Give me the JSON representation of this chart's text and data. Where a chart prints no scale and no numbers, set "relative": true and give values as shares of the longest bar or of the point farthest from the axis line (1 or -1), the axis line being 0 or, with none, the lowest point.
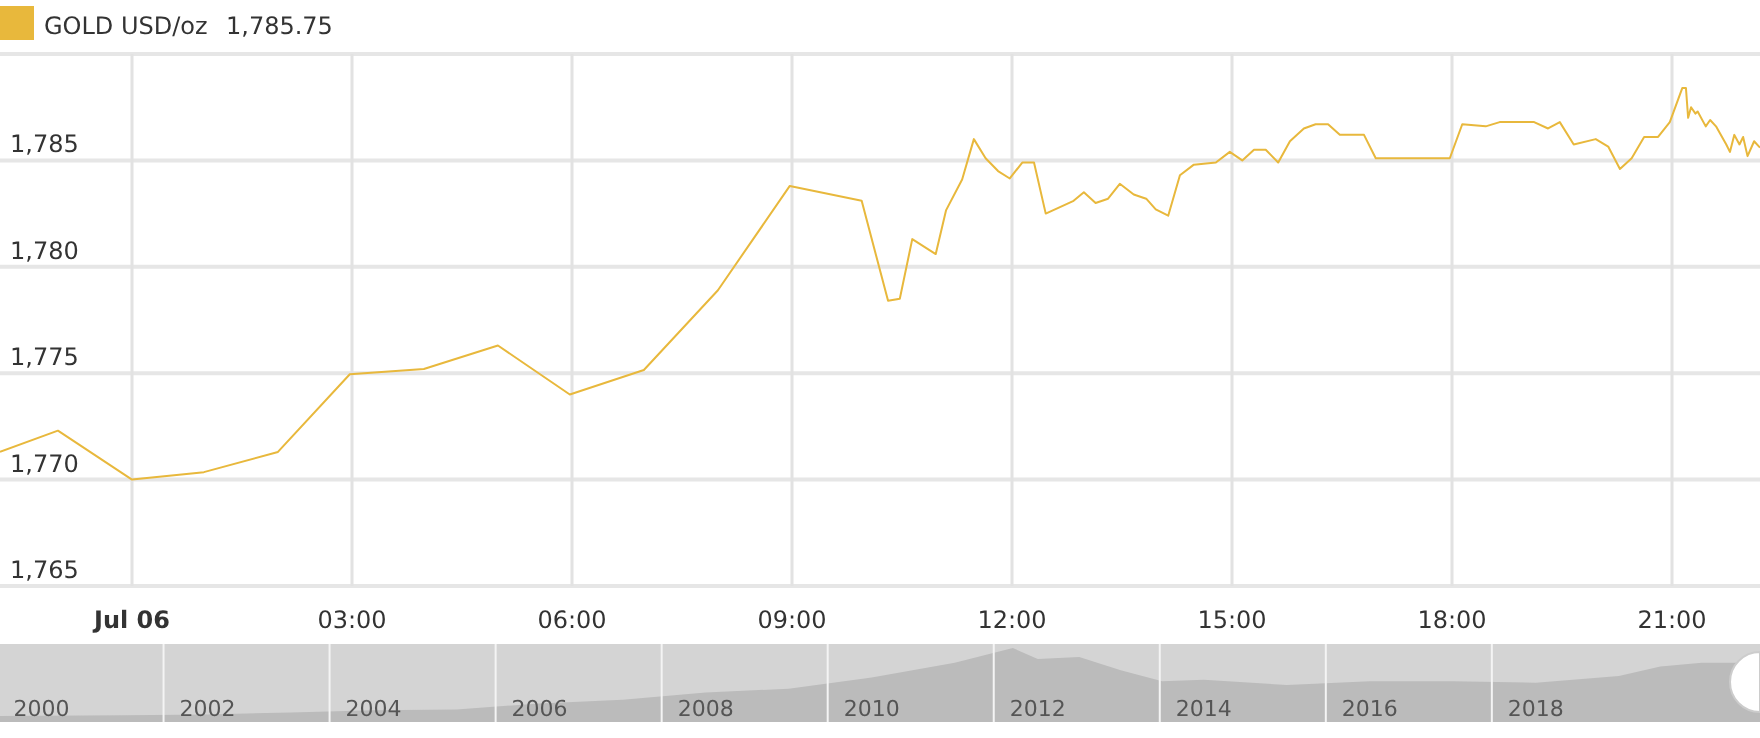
{
  "chart_data": [
    {
      "type": "line",
      "annotations": [
        "1,785.75"
      ],
      "legend": "top left",
      "grid": true,
      "line_style": "solid",
      "xlim": [
        -1.8,
        22.2
      ],
      "ylim": [
        1765,
        1790
      ],
      "xticks": [
        {
          "value": 0,
          "label": "Jul 06"
        },
        {
          "value": 3,
          "label": "03:00"
        },
        {
          "value": 6,
          "label": "06:00"
        },
        {
          "value": 9,
          "label": "09:00"
        },
        {
          "value": 12,
          "label": "12:00"
        },
        {
          "value": 15,
          "label": "15:00"
        },
        {
          "value": 18,
          "label": "18:00"
        },
        {
          "value": 21,
          "label": "21:00"
        }
      ],
      "yticks": [
        {
          "value": 1765,
          "label": "1,765"
        },
        {
          "value": 1770,
          "label": "1,770"
        },
        {
          "value": 1775,
          "label": "1,775"
        },
        {
          "value": 1780,
          "label": "1,780"
        },
        {
          "value": 1785,
          "label": "1,785"
        }
      ],
      "series": [
        {
          "name": "GOLD USD/oz",
          "color": "#e8b83c",
          "x": [
            -1.8,
            -1.01,
            0,
            0.98,
            1.99,
            2.97,
            3.98,
            4.99,
            5.97,
            6.98,
            7.99,
            8.97,
            9.95,
            10.31,
            10.47,
            10.64,
            10.96,
            11.1,
            11.32,
            11.48,
            11.64,
            11.81,
            11.97,
            12.14,
            12.3,
            12.46,
            12.84,
            12.98,
            13.14,
            13.31,
            13.47,
            13.66,
            13.83,
            13.96,
            14.13,
            14.29,
            14.48,
            14.78,
            14.97,
            15.14,
            15.3,
            15.46,
            15.63,
            15.79,
            15.98,
            16.14,
            16.31,
            16.47,
            16.8,
            16.96,
            17.97,
            18.14,
            18.46,
            18.65,
            19.12,
            19.31,
            19.47,
            19.66,
            19.96,
            20.13,
            20.29,
            20.45,
            20.62,
            20.81,
            20.97,
            21.14,
            21.19,
            21.22,
            21.26,
            21.32,
            21.35,
            21.46,
            21.52,
            21.6,
            21.74,
            21.79,
            21.85,
            21.92,
            21.97,
            22.03,
            22.12,
            22.2
          ],
          "values": [
            1771.3,
            1772.3,
            1770.0,
            1770.35,
            1771.3,
            1774.95,
            1775.2,
            1776.3,
            1774.0,
            1775.15,
            1778.9,
            1783.8,
            1783.1,
            1778.4,
            1778.5,
            1781.3,
            1780.6,
            1782.65,
            1784.1,
            1786.0,
            1785.1,
            1784.5,
            1784.15,
            1784.9,
            1784.9,
            1782.5,
            1783.1,
            1783.5,
            1783.0,
            1783.2,
            1783.9,
            1783.4,
            1783.2,
            1782.7,
            1782.4,
            1784.3,
            1784.8,
            1784.9,
            1785.4,
            1785.0,
            1785.5,
            1785.5,
            1784.9,
            1785.9,
            1786.5,
            1786.7,
            1786.7,
            1786.2,
            1786.2,
            1785.1,
            1785.1,
            1786.7,
            1786.6,
            1786.8,
            1786.8,
            1786.5,
            1786.8,
            1785.75,
            1786.0,
            1785.65,
            1784.6,
            1785.1,
            1786.1,
            1786.1,
            1786.8,
            1788.4,
            1788.4,
            1787.0,
            1787.5,
            1787.2,
            1787.3,
            1786.6,
            1786.9,
            1786.6,
            1785.75,
            1785.4,
            1786.2,
            1785.75,
            1786.1,
            1785.2,
            1785.9,
            1785.6
          ]
        }
      ]
    },
    {
      "type": "area",
      "relative": true,
      "grid": "x",
      "xlim": [
        1999.5,
        2020.7
      ],
      "xticks": [
        2000,
        2002,
        2004,
        2006,
        2008,
        2010,
        2012,
        2014,
        2016,
        2018
      ],
      "series": [
        {
          "color": "#bbbbbb",
          "x": [
            1999.5,
            2001,
            2002,
            2003,
            2004,
            2005,
            2006,
            2007,
            2008,
            2009,
            2010,
            2011,
            2011.7,
            2012,
            2012.5,
            2013,
            2013.5,
            2014,
            2015,
            2016,
            2017,
            2018,
            2019,
            2019.5,
            2020,
            2020.7
          ],
          "values": [
            0.08,
            0.09,
            0.1,
            0.13,
            0.16,
            0.17,
            0.25,
            0.3,
            0.4,
            0.45,
            0.6,
            0.8,
            1.0,
            0.85,
            0.88,
            0.7,
            0.55,
            0.57,
            0.5,
            0.55,
            0.55,
            0.53,
            0.62,
            0.75,
            0.8,
            0.8
          ]
        }
      ]
    }
  ]
}
